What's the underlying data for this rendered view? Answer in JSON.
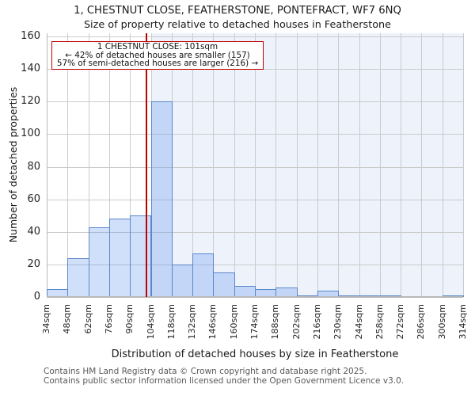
{
  "title": "1, CHESTNUT CLOSE, FEATHERSTONE, PONTEFRACT, WF7 6NQ",
  "subtitle": "Size of property relative to detached houses in Featherstone",
  "annotation": {
    "line1": "1 CHESTNUT CLOSE: 101sqm",
    "line2": "← 42% of detached houses are smaller (157)",
    "line3": "57% of semi-detached houses are larger (216) →"
  },
  "chart_data": {
    "type": "bar",
    "title": "1, CHESTNUT CLOSE, FEATHERSTONE, PONTEFRACT, WF7 6NQ",
    "subtitle": "Size of property relative to detached houses in Featherstone",
    "xlabel": "Distribution of detached houses by size in Featherstone",
    "ylabel": "Number of detached properties",
    "tick_labels": [
      "34sqm",
      "48sqm",
      "62sqm",
      "76sqm",
      "90sqm",
      "104sqm",
      "118sqm",
      "132sqm",
      "146sqm",
      "160sqm",
      "174sqm",
      "188sqm",
      "202sqm",
      "216sqm",
      "230sqm",
      "244sqm",
      "258sqm",
      "272sqm",
      "286sqm",
      "300sqm",
      "314sqm"
    ],
    "bin_start_sqm": 34,
    "bin_width_sqm": 14,
    "values": [
      5,
      24,
      43,
      48,
      50,
      120,
      20,
      27,
      15,
      7,
      5,
      6,
      1,
      4,
      1,
      1,
      1,
      0,
      0,
      1
    ],
    "yticks": [
      0,
      20,
      40,
      60,
      80,
      100,
      120,
      140,
      160
    ],
    "ylim": [
      0,
      162
    ],
    "grid": true,
    "legend": false,
    "marker_value_sqm": 101,
    "shade_from_sqm": 104,
    "colors": {
      "bar_fill": "rgba(100,149,237,0.30)",
      "bar_edge": "#5b87c9",
      "shade_bg": "#edf2fb",
      "gridline": "#cbcbcb",
      "axis_line": "#b9b9b9",
      "marker_red": "#bf0000"
    }
  },
  "footer": {
    "line1": "Contains HM Land Registry data © Crown copyright and database right 2025.",
    "line2": "Contains public sector information licensed under the Open Government Licence v3.0."
  }
}
